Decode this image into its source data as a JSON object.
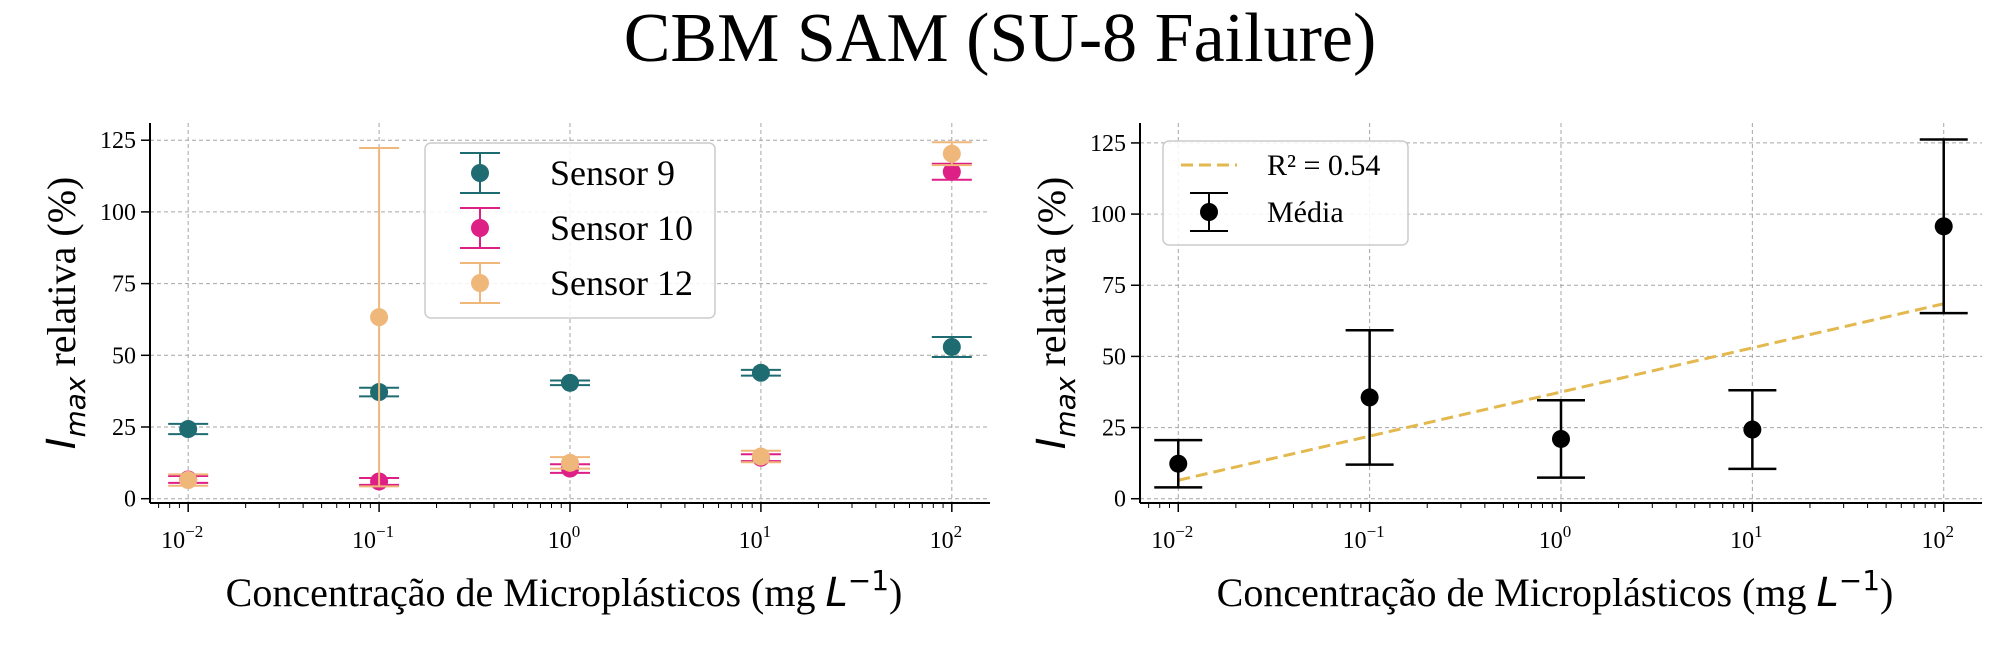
{
  "figure": {
    "title": "CBM SAM (SU-8 Failure)"
  },
  "chart_data": [
    {
      "type": "scatter",
      "xscale": "log",
      "xlim": [
        0.00631,
        158.5
      ],
      "ylim": [
        -1.5,
        131
      ],
      "xlabel_main": "Concentração de Microplásticos (mg ",
      "xlabel_var": "L",
      "xlabel_sup": "−1",
      "xlabel_close": ")",
      "ylabel_var": "I",
      "ylabel_sub": "max",
      "ylabel_rest": " relativa (%)",
      "xticks": [
        {
          "value": 0.01,
          "base": "10",
          "exp": "−2"
        },
        {
          "value": 0.1,
          "base": "10",
          "exp": "−1"
        },
        {
          "value": 1,
          "base": "10",
          "exp": "0"
        },
        {
          "value": 10,
          "base": "10",
          "exp": "1"
        },
        {
          "value": 100,
          "base": "10",
          "exp": "2"
        }
      ],
      "yticks": [
        0,
        25,
        50,
        75,
        100,
        125
      ],
      "grid": true,
      "legend_position": "top-center",
      "series": [
        {
          "name": "Sensor 9",
          "color": "#1f6b72",
          "points": [
            {
              "x": 0.01,
              "y": 24.3,
              "err": 1.8
            },
            {
              "x": 0.1,
              "y": 37.2,
              "err": 1.5
            },
            {
              "x": 1,
              "y": 40.4,
              "err": 0.8
            },
            {
              "x": 10,
              "y": 43.9,
              "err": 1.0
            },
            {
              "x": 100,
              "y": 52.9,
              "err": 3.5
            }
          ]
        },
        {
          "name": "Sensor 10",
          "color": "#de1f86",
          "points": [
            {
              "x": 0.01,
              "y": 6.7,
              "err": 1.2
            },
            {
              "x": 0.1,
              "y": 6.0,
              "err": 1.2
            },
            {
              "x": 1,
              "y": 10.5,
              "err": 1.5
            },
            {
              "x": 10,
              "y": 14.3,
              "err": 1.2
            },
            {
              "x": 100,
              "y": 114.0,
              "err": 2.8
            }
          ]
        },
        {
          "name": "Sensor 12",
          "color": "#f0b77a",
          "points": [
            {
              "x": 0.01,
              "y": 6.5,
              "err": 2.0
            },
            {
              "x": 0.1,
              "y": 63.3,
              "err": 59.0
            },
            {
              "x": 1,
              "y": 12.5,
              "err": 2.0
            },
            {
              "x": 10,
              "y": 14.7,
              "err": 2.0
            },
            {
              "x": 100,
              "y": 120.3,
              "err": 4.0
            }
          ]
        }
      ]
    },
    {
      "type": "scatter",
      "xscale": "log",
      "xlim": [
        0.00631,
        158.5
      ],
      "ylim": [
        -1.5,
        132
      ],
      "xlabel_main": "Concentração de Microplásticos (mg ",
      "xlabel_var": "L",
      "xlabel_sup": "−1",
      "xlabel_close": ")",
      "ylabel_var": "I",
      "ylabel_sub": "max",
      "ylabel_rest": " relativa (%)",
      "xticks": [
        {
          "value": 0.01,
          "base": "10",
          "exp": "−2"
        },
        {
          "value": 0.1,
          "base": "10",
          "exp": "−1"
        },
        {
          "value": 1,
          "base": "10",
          "exp": "0"
        },
        {
          "value": 10,
          "base": "10",
          "exp": "1"
        },
        {
          "value": 100,
          "base": "10",
          "exp": "2"
        }
      ],
      "yticks": [
        0,
        25,
        50,
        75,
        100,
        125
      ],
      "grid": true,
      "legend_position": "top-left",
      "series": [
        {
          "name": "Média",
          "color": "#000000",
          "points": [
            {
              "x": 0.01,
              "y": 12.3,
              "err": 8.3
            },
            {
              "x": 0.1,
              "y": 35.6,
              "err": 23.6
            },
            {
              "x": 1,
              "y": 21.0,
              "err": 13.6
            },
            {
              "x": 10,
              "y": 24.3,
              "err": 13.8
            },
            {
              "x": 100,
              "y": 95.7,
              "err": 30.5
            }
          ]
        }
      ],
      "fit": {
        "label": "R² = 0.54",
        "color": "#e3b94f",
        "x": [
          0.01,
          100
        ],
        "y": [
          6.5,
          68.5
        ]
      }
    }
  ]
}
